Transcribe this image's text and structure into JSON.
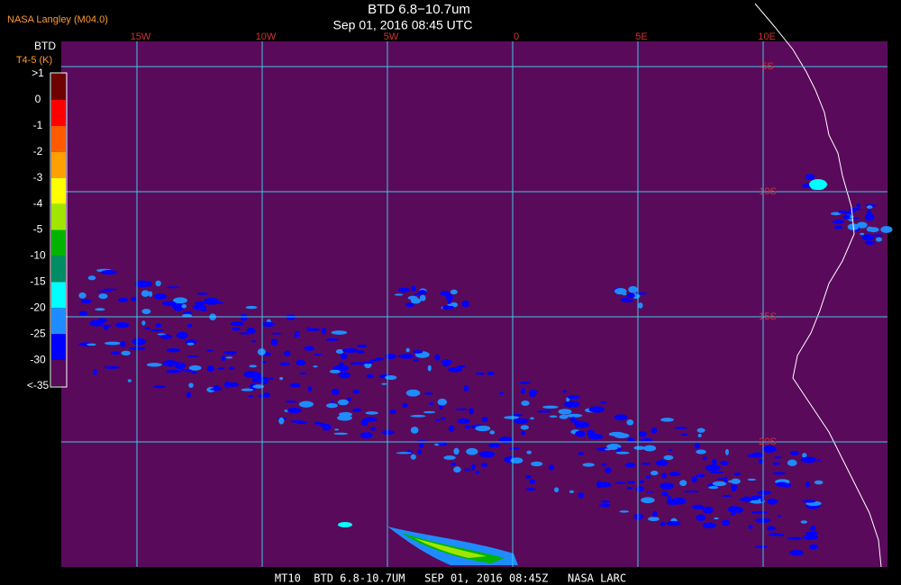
{
  "header": {
    "source": "NASA Langley (M04.0)",
    "title": "BTD 6.8−10.7um",
    "subtitle": "Sep 01, 2016 08:45 UTC"
  },
  "legend": {
    "title": "BTD",
    "unit": "T4-5 (K)",
    "labels": [
      ">1",
      "0",
      "-1",
      "-2",
      "-3",
      "-4",
      "-5",
      "-10",
      "-15",
      "-20",
      "-25",
      "-30",
      "<-35"
    ],
    "colors": [
      "#6e0000",
      "#ff0000",
      "#ff5a00",
      "#ffa000",
      "#ffff00",
      "#a0e600",
      "#00b400",
      "#008c64",
      "#00ffff",
      "#1e8cff",
      "#0000ff",
      "#5a0a5a"
    ]
  },
  "map": {
    "longitude_labels": [
      "15W",
      "10W",
      "5W",
      "0",
      "5E",
      "10E"
    ],
    "latitude_labels": [
      "5S",
      "10S",
      "15S",
      "20S"
    ]
  },
  "footer": "MT10  BTD 6.8-10.7UM   SEP 01, 2016 08:45Z   NASA LARC"
}
